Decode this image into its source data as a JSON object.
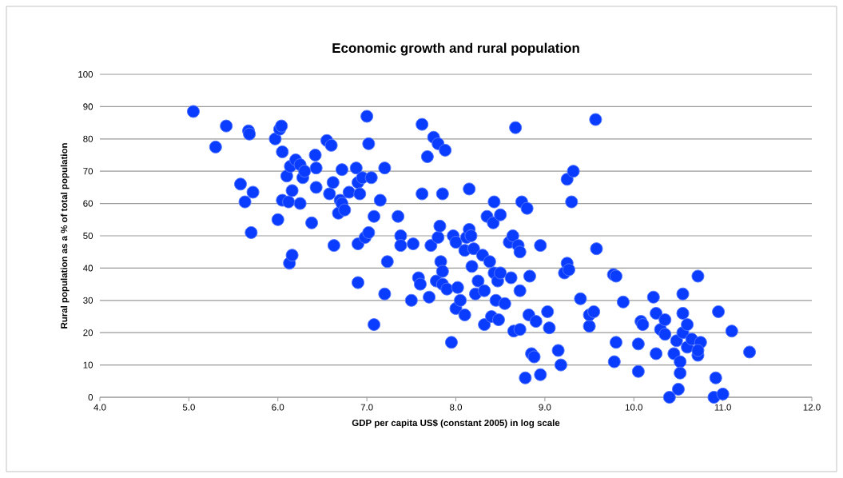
{
  "chart_data": {
    "type": "scatter",
    "title": "Economic growth and rural population",
    "xlabel": "GDP per capita US$ (constant 2005) in log scale",
    "ylabel": "Rural population as a % of total population",
    "xlim": [
      4,
      12
    ],
    "xticks": [
      {
        "value": 4,
        "label": "4.0"
      },
      {
        "value": 5,
        "label": "5.0"
      },
      {
        "value": 6,
        "label": "6.0"
      },
      {
        "value": 7,
        "label": "7.0"
      },
      {
        "value": 8,
        "label": "8.0"
      },
      {
        "value": 9,
        "label": "9.0"
      },
      {
        "value": 10,
        "label": "10.0"
      },
      {
        "value": 11,
        "label": "11.0"
      },
      {
        "value": 12,
        "label": "12.0"
      }
    ],
    "ylim": [
      0,
      100
    ],
    "yticks": [
      0,
      10,
      20,
      30,
      40,
      50,
      60,
      70,
      80,
      90,
      100
    ],
    "grid": "y",
    "marker": "circle",
    "series": [
      {
        "color": "#0a3cff",
        "x": [
          5.05,
          5.3,
          5.42,
          5.67,
          5.68,
          5.58,
          5.63,
          5.72,
          5.7,
          5.97,
          6.02,
          6.04,
          6.05,
          6.0,
          6.05,
          6.1,
          6.12,
          6.14,
          6.16,
          6.13,
          6.16,
          6.2,
          6.25,
          6.25,
          6.28,
          6.3,
          6.38,
          6.42,
          6.43,
          6.43,
          6.55,
          6.6,
          6.58,
          6.62,
          6.63,
          6.68,
          6.7,
          6.72,
          6.72,
          6.75,
          6.8,
          6.88,
          6.9,
          6.92,
          6.9,
          6.9,
          6.95,
          6.98,
          7.0,
          7.02,
          7.02,
          7.05,
          7.08,
          7.08,
          7.15,
          7.2,
          7.2,
          7.23,
          7.35,
          7.38,
          7.38,
          7.5,
          7.52,
          7.58,
          7.6,
          7.62,
          7.62,
          7.68,
          7.7,
          7.72,
          7.75,
          7.78,
          7.8,
          7.8,
          7.82,
          7.83,
          7.85,
          7.85,
          7.88,
          7.85,
          7.9,
          7.95,
          7.97,
          8.0,
          8.0,
          8.02,
          8.05,
          8.1,
          8.1,
          8.12,
          8.15,
          8.15,
          8.17,
          8.18,
          8.2,
          8.22,
          8.25,
          8.3,
          8.32,
          8.32,
          8.35,
          8.38,
          8.4,
          8.42,
          8.43,
          8.43,
          8.45,
          8.47,
          8.48,
          8.5,
          8.5,
          8.55,
          8.6,
          8.62,
          8.64,
          8.65,
          8.67,
          8.7,
          8.72,
          8.72,
          8.72,
          8.74,
          8.8,
          8.78,
          8.82,
          8.83,
          8.85,
          8.88,
          8.9,
          8.95,
          8.95,
          9.03,
          9.05,
          9.15,
          9.18,
          9.22,
          9.25,
          9.25,
          9.27,
          9.3,
          9.32,
          9.4,
          9.5,
          9.5,
          9.55,
          9.57,
          9.58,
          9.77,
          9.8,
          9.8,
          9.78,
          9.88,
          10.05,
          10.05,
          10.08,
          10.1,
          10.22,
          10.25,
          10.25,
          10.3,
          10.35,
          10.35,
          10.4,
          10.45,
          10.48,
          10.5,
          10.52,
          10.55,
          10.55,
          10.52,
          10.55,
          10.6,
          10.6,
          10.65,
          10.72,
          10.72,
          10.75,
          10.72,
          10.9,
          10.92,
          10.95,
          11.0,
          11.1,
          11.3
        ],
        "values": [
          88.5,
          77.5,
          84,
          82.5,
          81.5,
          66,
          60.5,
          63.5,
          51,
          80,
          83,
          84,
          76,
          55,
          61,
          68.5,
          60.5,
          71.5,
          64,
          41.5,
          44,
          73.5,
          72,
          60,
          68,
          70,
          54,
          75,
          71,
          65,
          79.5,
          78,
          63,
          66.5,
          47,
          57,
          61,
          70.5,
          60,
          58,
          63.5,
          71,
          66.5,
          63,
          47.5,
          35.5,
          68,
          49.5,
          87,
          78.5,
          51,
          68,
          56,
          22.5,
          61,
          71,
          32,
          42,
          56,
          50,
          47,
          30,
          47.5,
          37,
          35,
          84.5,
          63,
          74.5,
          31,
          47,
          80.5,
          36,
          78.5,
          49.5,
          53,
          42,
          63,
          39,
          76.5,
          35,
          33.5,
          17,
          50,
          27.5,
          48,
          34,
          30,
          45.5,
          25.5,
          49.5,
          64.5,
          52,
          50,
          40.5,
          46,
          32,
          36,
          44,
          33,
          22.5,
          56,
          42,
          25,
          54,
          60.5,
          38.5,
          30,
          36,
          24,
          56.5,
          38.5,
          29,
          48,
          37,
          50,
          20.5,
          83.5,
          47,
          45,
          33,
          21,
          60.5,
          58.5,
          6,
          25.5,
          37.5,
          13.5,
          12.5,
          23.5,
          47,
          7,
          26.5,
          21.5,
          14.5,
          10,
          38.5,
          41.5,
          67.5,
          39.5,
          60.5,
          70,
          30.5,
          22,
          25.5,
          26.5,
          86,
          46,
          38,
          37.5,
          17,
          11,
          29.5,
          8,
          16.5,
          23.5,
          22.5,
          31,
          26,
          13.5,
          21,
          24,
          19.5,
          0,
          13.5,
          17.5,
          2.5,
          11,
          32,
          26,
          7.5,
          20,
          22.5,
          15.5,
          18,
          37.5,
          13,
          17,
          14.5,
          0,
          6,
          26.5,
          1,
          20.5,
          14
        ]
      }
    ]
  }
}
